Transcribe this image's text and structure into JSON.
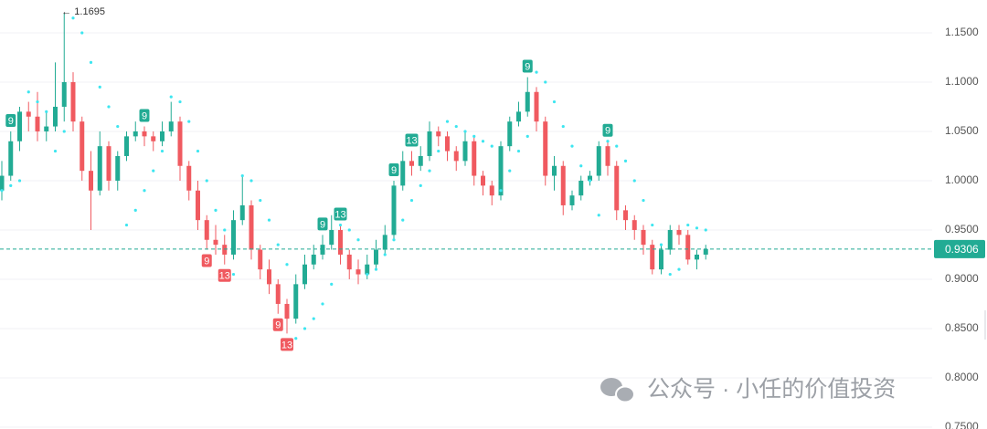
{
  "chart_data": {
    "type": "candlestick",
    "ylim": [
      0.7481,
      1.1833
    ],
    "yticks": [
      {
        "value": 0.75,
        "label": "0.7500"
      },
      {
        "value": 0.8,
        "label": "0.8000"
      },
      {
        "value": 0.85,
        "label": "0.8500"
      },
      {
        "value": 0.9,
        "label": "0.9000"
      },
      {
        "value": 0.95,
        "label": "0.9500"
      },
      {
        "value": 1.0,
        "label": "1.0000"
      },
      {
        "value": 1.05,
        "label": "1.0500"
      },
      {
        "value": 1.1,
        "label": "1.1000"
      },
      {
        "value": 1.15,
        "label": "1.1500"
      }
    ],
    "grid": true,
    "up_color": "#22ab94",
    "down_color": "#f05a60",
    "sar_color": "#3de6f0",
    "candles": [
      [
        0.99,
        1.02,
        0.98,
        1.005
      ],
      [
        1.005,
        1.05,
        1.0,
        1.04
      ],
      [
        1.04,
        1.075,
        1.03,
        1.07
      ],
      [
        1.07,
        1.08,
        1.05,
        1.065
      ],
      [
        1.065,
        1.09,
        1.04,
        1.05
      ],
      [
        1.05,
        1.07,
        1.04,
        1.055
      ],
      [
        1.055,
        1.12,
        1.05,
        1.075
      ],
      [
        1.075,
        1.1695,
        1.06,
        1.1
      ],
      [
        1.1,
        1.11,
        1.05,
        1.06
      ],
      [
        1.06,
        1.065,
        1.0,
        1.01
      ],
      [
        1.01,
        1.03,
        0.95,
        0.99
      ],
      [
        0.99,
        1.05,
        0.985,
        1.035
      ],
      [
        1.035,
        1.04,
        0.99,
        1.0
      ],
      [
        1.0,
        1.03,
        0.99,
        1.025
      ],
      [
        1.025,
        1.05,
        1.02,
        1.045
      ],
      [
        1.045,
        1.06,
        1.04,
        1.05
      ],
      [
        1.05,
        1.055,
        1.035,
        1.045
      ],
      [
        1.045,
        1.05,
        1.03,
        1.04
      ],
      [
        1.04,
        1.06,
        1.035,
        1.05
      ],
      [
        1.05,
        1.08,
        1.045,
        1.06
      ],
      [
        1.06,
        1.065,
        1.0,
        1.015
      ],
      [
        1.015,
        1.02,
        0.98,
        0.99
      ],
      [
        0.99,
        1.0,
        0.95,
        0.96
      ],
      [
        0.96,
        0.965,
        0.93,
        0.94
      ],
      [
        0.94,
        0.955,
        0.925,
        0.935
      ],
      [
        0.935,
        0.945,
        0.915,
        0.925
      ],
      [
        0.925,
        0.97,
        0.92,
        0.96
      ],
      [
        0.96,
        1.005,
        0.955,
        0.975
      ],
      [
        0.975,
        0.98,
        0.92,
        0.93
      ],
      [
        0.93,
        0.935,
        0.9,
        0.91
      ],
      [
        0.91,
        0.92,
        0.885,
        0.895
      ],
      [
        0.895,
        0.9,
        0.865,
        0.875
      ],
      [
        0.875,
        0.88,
        0.845,
        0.86
      ],
      [
        0.86,
        0.905,
        0.855,
        0.895
      ],
      [
        0.895,
        0.925,
        0.89,
        0.915
      ],
      [
        0.915,
        0.935,
        0.91,
        0.925
      ],
      [
        0.925,
        0.945,
        0.92,
        0.935
      ],
      [
        0.935,
        0.965,
        0.93,
        0.95
      ],
      [
        0.95,
        0.955,
        0.915,
        0.925
      ],
      [
        0.925,
        0.93,
        0.9,
        0.91
      ],
      [
        0.91,
        0.92,
        0.895,
        0.905
      ],
      [
        0.905,
        0.925,
        0.9,
        0.915
      ],
      [
        0.915,
        0.94,
        0.91,
        0.93
      ],
      [
        0.93,
        0.955,
        0.925,
        0.945
      ],
      [
        0.945,
        1.0,
        0.94,
        0.995
      ],
      [
        0.995,
        1.03,
        0.99,
        1.02
      ],
      [
        1.02,
        1.03,
        1.005,
        1.015
      ],
      [
        1.015,
        1.035,
        1.01,
        1.025
      ],
      [
        1.025,
        1.06,
        1.02,
        1.05
      ],
      [
        1.05,
        1.055,
        1.035,
        1.045
      ],
      [
        1.045,
        1.05,
        1.02,
        1.03
      ],
      [
        1.03,
        1.035,
        1.01,
        1.02
      ],
      [
        1.02,
        1.05,
        1.015,
        1.04
      ],
      [
        1.04,
        1.045,
        0.995,
        1.005
      ],
      [
        1.005,
        1.01,
        0.985,
        0.995
      ],
      [
        0.995,
        1.0,
        0.975,
        0.985
      ],
      [
        0.985,
        1.04,
        0.98,
        1.035
      ],
      [
        1.035,
        1.065,
        1.03,
        1.06
      ],
      [
        1.06,
        1.08,
        1.055,
        1.07
      ],
      [
        1.07,
        1.105,
        1.065,
        1.09
      ],
      [
        1.09,
        1.095,
        1.05,
        1.06
      ],
      [
        1.06,
        1.065,
        0.995,
        1.005
      ],
      [
        1.005,
        1.025,
        0.99,
        1.015
      ],
      [
        1.015,
        1.02,
        0.965,
        0.975
      ],
      [
        0.975,
        0.99,
        0.97,
        0.985
      ],
      [
        0.985,
        1.005,
        0.98,
        1.0
      ],
      [
        1.0,
        1.01,
        0.995,
        1.005
      ],
      [
        1.005,
        1.04,
        1.0,
        1.035
      ],
      [
        1.035,
        1.04,
        1.005,
        1.015
      ],
      [
        1.015,
        1.02,
        0.96,
        0.97
      ],
      [
        0.97,
        0.975,
        0.95,
        0.96
      ],
      [
        0.96,
        0.965,
        0.94,
        0.95
      ],
      [
        0.95,
        0.955,
        0.925,
        0.935
      ],
      [
        0.935,
        0.94,
        0.905,
        0.91
      ],
      [
        0.91,
        0.935,
        0.905,
        0.93
      ],
      [
        0.93,
        0.955,
        0.925,
        0.95
      ],
      [
        0.95,
        0.955,
        0.935,
        0.945
      ],
      [
        0.945,
        0.95,
        0.915,
        0.92
      ],
      [
        0.92,
        0.93,
        0.91,
        0.925
      ],
      [
        0.925,
        0.935,
        0.92,
        0.9306
      ]
    ],
    "sar": [
      0.99,
      0.995,
      1.0,
      1.09,
      1.08,
      1.07,
      1.03,
      1.05,
      1.165,
      1.15,
      1.12,
      1.095,
      1.075,
      1.055,
      0.955,
      0.97,
      0.99,
      1.01,
      1.03,
      1.085,
      1.08,
      1.06,
      1.03,
      1.0,
      0.97,
      0.95,
      0.905,
      1.005,
      1.0,
      0.98,
      0.96,
      0.935,
      0.915,
      0.84,
      0.85,
      0.86,
      0.875,
      0.895,
      0.955,
      0.95,
      0.94,
      0.905,
      0.91,
      0.925,
      0.94,
      0.96,
      0.98,
      0.995,
      1.01,
      1.03,
      1.06,
      1.055,
      1.05,
      1.045,
      1.04,
      1.035,
      0.99,
      1.01,
      1.03,
      1.045,
      1.11,
      1.1,
      1.08,
      1.055,
      1.035,
      1.015,
      1.0,
      0.965,
      1.04,
      1.035,
      1.02,
      1.0,
      0.98,
      0.955,
      0.935,
      0.905,
      0.91,
      0.955,
      0.952,
      0.95
    ],
    "td_labels": [
      {
        "index": 1,
        "label": 9,
        "side": "up"
      },
      {
        "index": 16,
        "label": 9,
        "side": "up"
      },
      {
        "index": 23,
        "label": 9,
        "side": "down"
      },
      {
        "index": 25,
        "label": 13,
        "side": "down"
      },
      {
        "index": 31,
        "label": 9,
        "side": "down"
      },
      {
        "index": 32,
        "label": 13,
        "side": "down"
      },
      {
        "index": 36,
        "label": 9,
        "side": "up"
      },
      {
        "index": 38,
        "label": 13,
        "side": "up"
      },
      {
        "index": 44,
        "label": 9,
        "side": "up"
      },
      {
        "index": 46,
        "label": 13,
        "side": "up"
      },
      {
        "index": 59,
        "label": 9,
        "side": "up"
      },
      {
        "index": 68,
        "label": 9,
        "side": "up"
      }
    ],
    "last_price": 0.9306,
    "max_annotation": {
      "value": 1.1695,
      "label": "← 1.1695",
      "index": 7
    },
    "watermark": "公众号 · 小任的价值投资"
  }
}
